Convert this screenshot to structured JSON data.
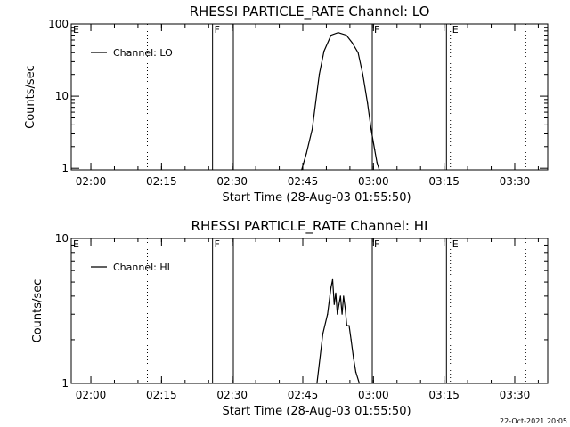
{
  "timestamp": "22-Oct-2021 20:05",
  "chart_data": [
    {
      "type": "line",
      "title": "RHESSI PARTICLE_RATE Channel: LO",
      "xlabel": "Start Time (28-Aug-03 01:55:50)",
      "ylabel": "Counts/sec",
      "yscale": "log",
      "xlim": [
        "01:55:50",
        "03:37:00"
      ],
      "ylim": [
        0.95,
        100
      ],
      "xticks": [
        "02:00",
        "02:15",
        "02:30",
        "02:45",
        "03:00",
        "03:15",
        "03:30"
      ],
      "yticks": [
        {
          "value": 1,
          "label": "1"
        },
        {
          "value": 10,
          "label": "10"
        },
        {
          "value": 100,
          "label": "100"
        }
      ],
      "legend": {
        "placement": "top-left",
        "entries": [
          "Channel: LO"
        ]
      },
      "series": [
        {
          "name": "Channel: LO",
          "x": [
            "02:44:45",
            "02:45:45",
            "02:47:00",
            "02:48:30",
            "02:49:30",
            "02:51:00",
            "02:52:30",
            "02:54:15",
            "02:55:30",
            "02:56:45",
            "02:57:45",
            "02:58:45",
            "02:59:30",
            "03:00:15",
            "03:00:45",
            "03:01:15"
          ],
          "y": [
            0.95,
            1.6,
            3.5,
            20,
            42,
            70,
            76,
            70,
            55,
            40,
            20,
            8,
            3.5,
            1.8,
            1.2,
            0.95
          ]
        }
      ],
      "markers": [
        {
          "text": "E",
          "time": "01:55:50",
          "style": "none"
        },
        {
          "text": "",
          "time": "02:12:00",
          "style": "dotted"
        },
        {
          "text": "F",
          "time": "02:25:50",
          "style": "solid"
        },
        {
          "text": "",
          "time": "02:30:15",
          "style": "solid"
        },
        {
          "text": "F",
          "time": "02:59:45",
          "style": "solid"
        },
        {
          "text": "",
          "time": "03:15:30",
          "style": "solid"
        },
        {
          "text": "E",
          "time": "03:16:20",
          "style": "dotted"
        },
        {
          "text": "",
          "time": "03:32:20",
          "style": "dotted"
        }
      ]
    },
    {
      "type": "line",
      "title": "RHESSI PARTICLE_RATE Channel: HI",
      "xlabel": "Start Time (28-Aug-03 01:55:50)",
      "ylabel": "Counts/sec",
      "yscale": "log",
      "xlim": [
        "01:55:50",
        "03:37:00"
      ],
      "ylim": [
        1,
        10
      ],
      "xticks": [
        "02:00",
        "02:15",
        "02:30",
        "02:45",
        "03:00",
        "03:15",
        "03:30"
      ],
      "yticks": [
        {
          "value": 1,
          "label": "1"
        },
        {
          "value": 10,
          "label": "10"
        }
      ],
      "legend": {
        "placement": "top-left",
        "entries": [
          "Channel: HI"
        ]
      },
      "series": [
        {
          "name": "Channel: HI",
          "x": [
            "02:48:00",
            "02:49:15",
            "02:50:15",
            "02:50:45",
            "02:51:00",
            "02:51:20",
            "02:51:40",
            "02:52:00",
            "02:52:20",
            "02:52:40",
            "02:53:00",
            "02:53:20",
            "02:53:40",
            "02:54:00",
            "02:54:20",
            "02:54:50",
            "02:55:15",
            "02:55:45",
            "02:56:15",
            "02:57:00"
          ],
          "y": [
            1,
            2.2,
            3.0,
            4.0,
            4.6,
            5.2,
            3.5,
            4.2,
            3.0,
            3.5,
            4.0,
            3.0,
            4.0,
            3.3,
            2.5,
            2.5,
            2.0,
            1.5,
            1.2,
            1
          ]
        }
      ],
      "markers": [
        {
          "text": "E",
          "time": "01:55:50",
          "style": "none"
        },
        {
          "text": "",
          "time": "02:12:00",
          "style": "dotted"
        },
        {
          "text": "F",
          "time": "02:25:50",
          "style": "solid"
        },
        {
          "text": "",
          "time": "02:30:15",
          "style": "solid"
        },
        {
          "text": "F",
          "time": "02:59:45",
          "style": "solid"
        },
        {
          "text": "",
          "time": "03:15:30",
          "style": "solid"
        },
        {
          "text": "E",
          "time": "03:16:20",
          "style": "dotted"
        },
        {
          "text": "",
          "time": "03:32:20",
          "style": "dotted"
        }
      ]
    }
  ]
}
